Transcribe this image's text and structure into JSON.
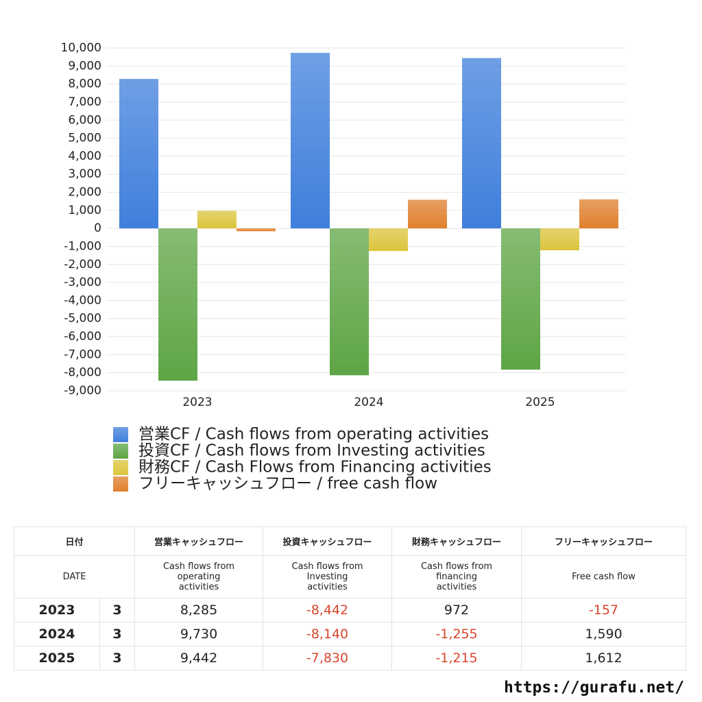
{
  "chart_data": {
    "type": "bar",
    "categories": [
      "2023",
      "2024",
      "2025"
    ],
    "series": [
      {
        "name": "営業CF / Cash flows from operating activities",
        "color": "#3f7fdc",
        "values": [
          8285,
          9730,
          9442
        ]
      },
      {
        "name": "投資CF / Cash flows from Investing activities",
        "color": "#5ea545",
        "values": [
          -8442,
          -8140,
          -7830
        ]
      },
      {
        "name": "財務CF / Cash Flows from Financing activities",
        "color": "#dcc43c",
        "values": [
          972,
          -1255,
          -1215
        ]
      },
      {
        "name": "フリーキャッシュフロー / free cash flow",
        "color": "#e0802e",
        "values": [
          -157,
          1590,
          1612
        ]
      }
    ],
    "ylim": [
      -9000,
      10000
    ],
    "yticks": [
      {
        "value": -9000,
        "label": "-9,000"
      },
      {
        "value": -8000,
        "label": "-8,000"
      },
      {
        "value": -7000,
        "label": "-7,000"
      },
      {
        "value": -6000,
        "label": "-6,000"
      },
      {
        "value": -5000,
        "label": "-5,000"
      },
      {
        "value": -4000,
        "label": "-4,000"
      },
      {
        "value": -3000,
        "label": "-3,000"
      },
      {
        "value": -2000,
        "label": "-2,000"
      },
      {
        "value": -1000,
        "label": "-1,000"
      },
      0,
      {
        "value": 1000,
        "label": "1,000"
      },
      {
        "value": 2000,
        "label": "2,000"
      },
      {
        "value": 3000,
        "label": "3,000"
      },
      {
        "value": 4000,
        "label": "4,000"
      },
      {
        "value": 5000,
        "label": "5,000"
      },
      {
        "value": 6000,
        "label": "6,000"
      },
      {
        "value": 7000,
        "label": "7,000"
      },
      {
        "value": 8000,
        "label": "8,000"
      },
      {
        "value": 9000,
        "label": "9,000"
      },
      {
        "value": 10000,
        "label": "10,000"
      }
    ],
    "grid": true,
    "legend": "bottom"
  },
  "table": {
    "header_jp": [
      "日付",
      "営業キャッシュフロー",
      "投資キャッシュフロー",
      "財務キャッシュフロー",
      "フリーキャッシュフロー"
    ],
    "header_en": [
      "DATE",
      "Cash flows from operating activities",
      "Cash flows from Investing activities",
      "Cash flows from financing activities",
      "Free cash flow"
    ],
    "rows": [
      {
        "year": "2023",
        "month": "3",
        "cells": [
          "8,285",
          "-8,442",
          "972",
          "-157"
        ]
      },
      {
        "year": "2024",
        "month": "3",
        "cells": [
          "9,730",
          "-8,140",
          "-1,255",
          "1,590"
        ]
      },
      {
        "year": "2025",
        "month": "3",
        "cells": [
          "9,442",
          "-7,830",
          "-1,215",
          "1,612"
        ]
      }
    ]
  },
  "footer": "https://gurafu.net/"
}
